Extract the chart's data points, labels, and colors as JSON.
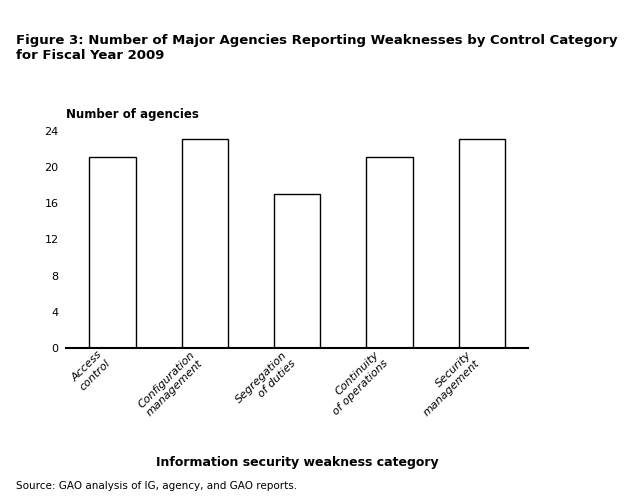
{
  "title": "Figure 3: Number of Major Agencies Reporting Weaknesses by Control Category\nfor Fiscal Year 2009",
  "categories": [
    "Access\ncontrol",
    "Configuration\nmanagement",
    "Segregation\nof duties",
    "Continuity\nof operations",
    "Security\nmanagement"
  ],
  "values": [
    21,
    23,
    17,
    21,
    23
  ],
  "ylabel_text": "Number of agencies",
  "xlabel": "Information security weakness category",
  "ylim": [
    0,
    24
  ],
  "yticks": [
    0,
    4,
    8,
    12,
    16,
    20,
    24
  ],
  "bar_color": "#ffffff",
  "bar_edge_color": "#000000",
  "bar_linewidth": 1.0,
  "source_text": "Source: GAO analysis of IG, agency, and GAO reports.",
  "header_bg_color": "#111111",
  "background_color": "#ffffff",
  "title_fontsize": 9.5,
  "ylabel_fontsize": 8.5,
  "xlabel_fontsize": 9,
  "tick_fontsize": 8,
  "source_fontsize": 7.5
}
